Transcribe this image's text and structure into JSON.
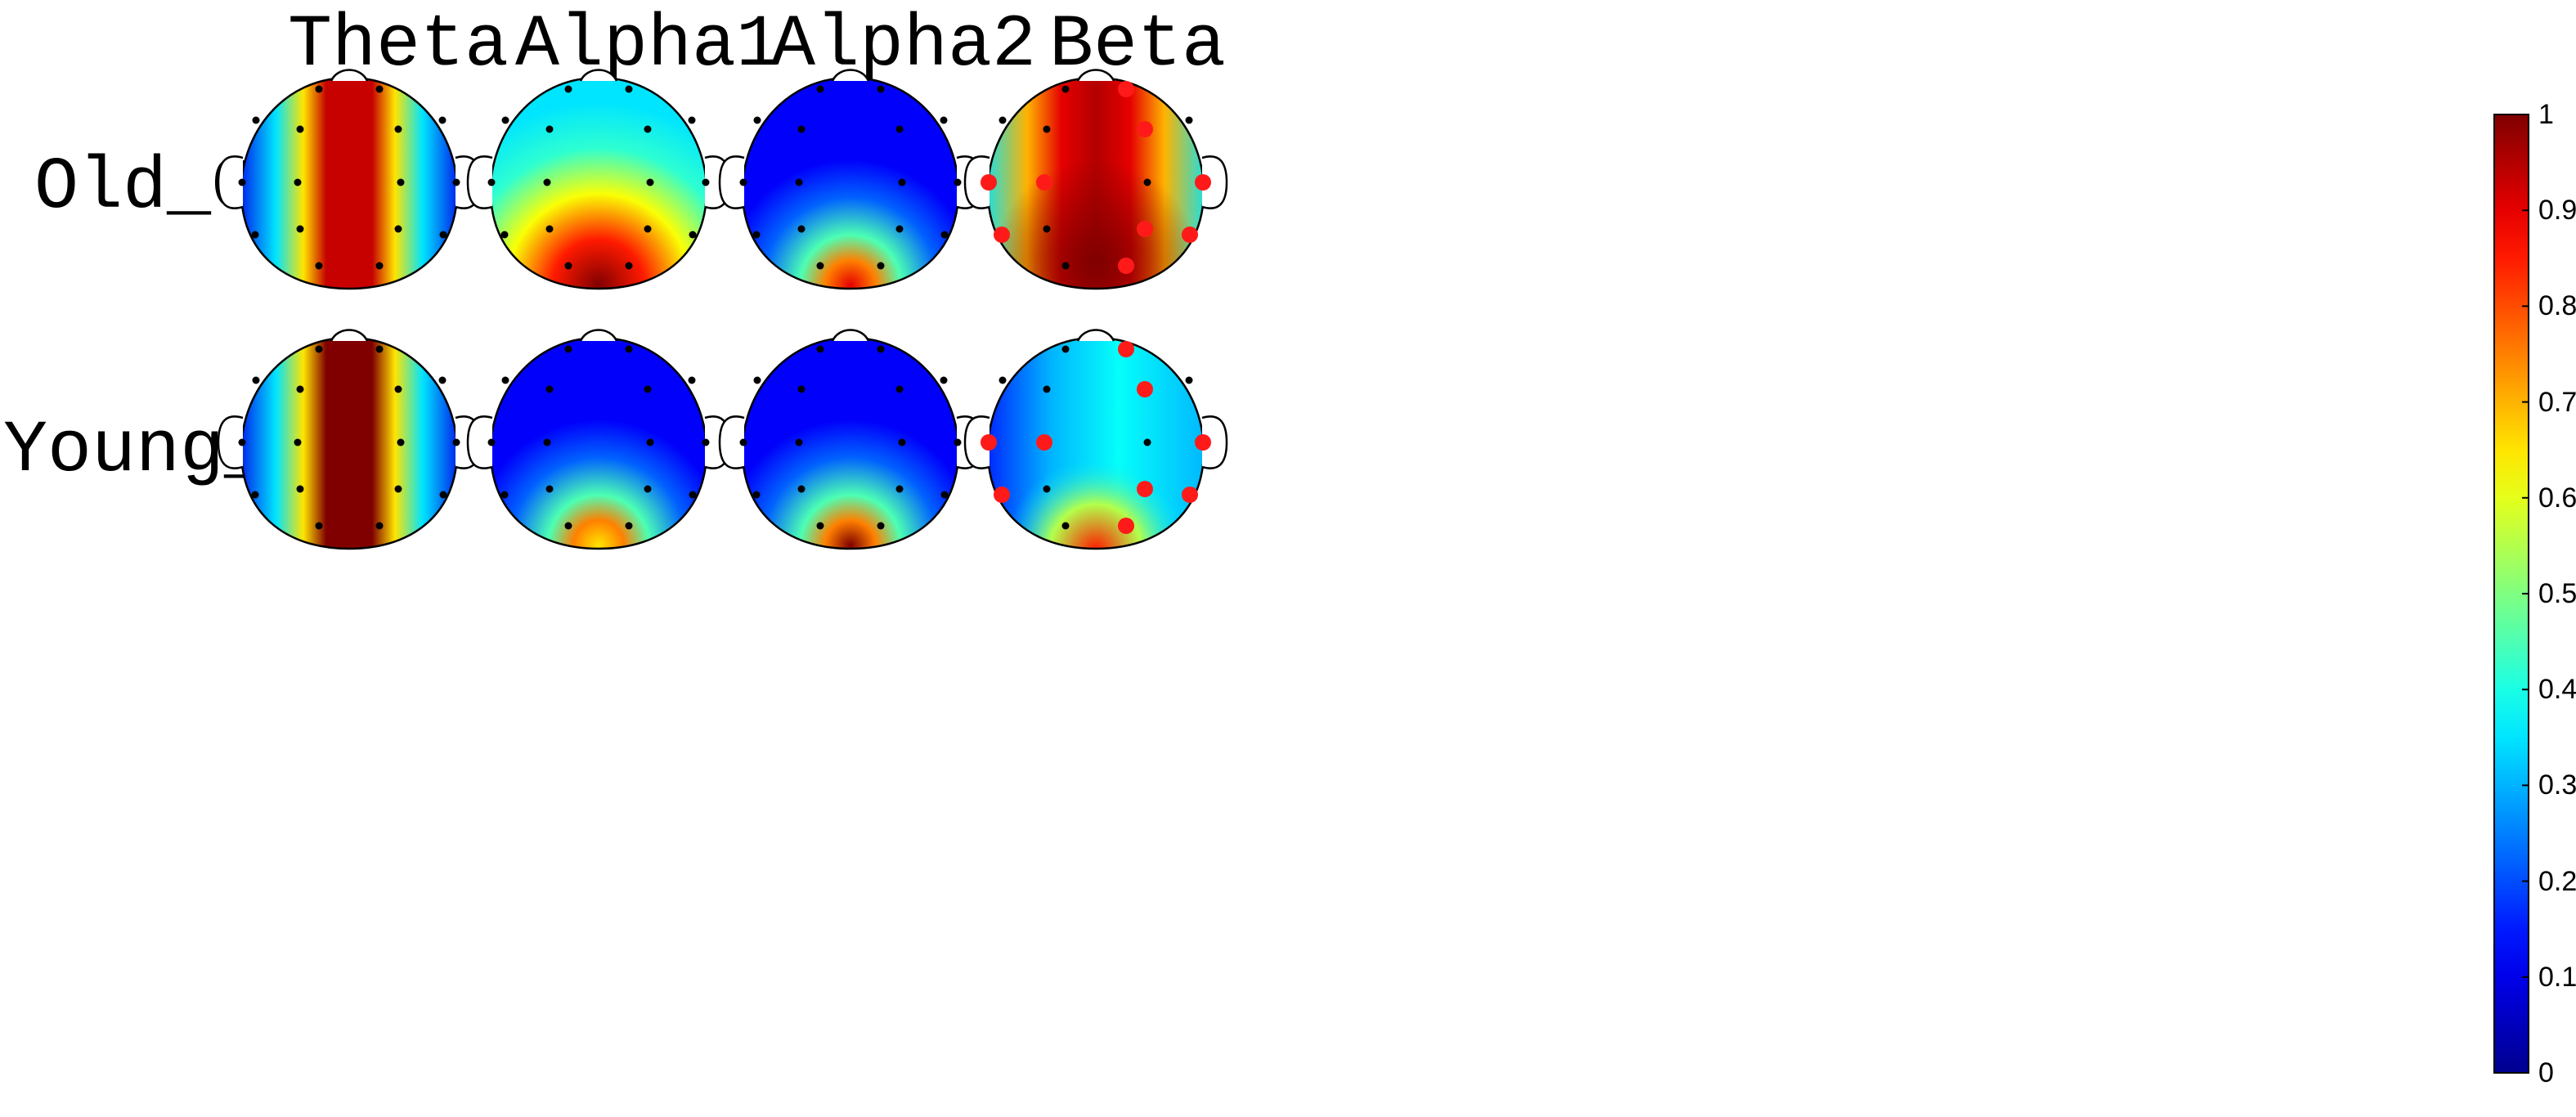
{
  "chart_data": {
    "type": "heatmap",
    "subtype": "eeg-topographic-maps",
    "bands": [
      "Theta",
      "Alpha1",
      "Alpha2",
      "Beta"
    ],
    "groups": [
      "Old_GAD",
      "Young_GAD"
    ],
    "colormap": "jet",
    "colorbar": {
      "range": [
        0,
        1
      ],
      "ticks": [
        "0",
        "0.1",
        "0.2",
        "0.3",
        "0.4",
        "0.5",
        "0.6",
        "0.7",
        "0.8",
        "0.9",
        "1"
      ],
      "placement": "right"
    },
    "electrodes_per_map": 16,
    "highlight_color": "#ff1a1a",
    "maps": [
      {
        "group": "Old_GAD",
        "band": "Theta",
        "pattern": "central-vertical",
        "peak": 0.93,
        "significant": []
      },
      {
        "group": "Old_GAD",
        "band": "Alpha1",
        "pattern": "posterior",
        "peak": 1.0,
        "significant": []
      },
      {
        "group": "Old_GAD",
        "band": "Alpha2",
        "pattern": "posterior-low",
        "peak": 0.9,
        "significant": []
      },
      {
        "group": "Old_GAD",
        "band": "Beta",
        "pattern": "broad-posterior",
        "peak": 1.0,
        "significant": [
          1,
          4,
          6,
          7,
          9,
          10,
          12,
          13,
          15
        ]
      },
      {
        "group": "Young_GAD",
        "band": "Theta",
        "pattern": "central-vertical",
        "peak": 1.0,
        "significant": []
      },
      {
        "group": "Young_GAD",
        "band": "Alpha1",
        "pattern": "posterior-low",
        "peak": 0.65,
        "significant": []
      },
      {
        "group": "Young_GAD",
        "band": "Alpha2",
        "pattern": "posterior-low",
        "peak": 1.0,
        "significant": []
      },
      {
        "group": "Young_GAD",
        "band": "Beta",
        "pattern": "diffuse-mid",
        "peak": 0.75,
        "significant": [
          1,
          4,
          6,
          7,
          9,
          10,
          12,
          13,
          15
        ]
      }
    ]
  }
}
